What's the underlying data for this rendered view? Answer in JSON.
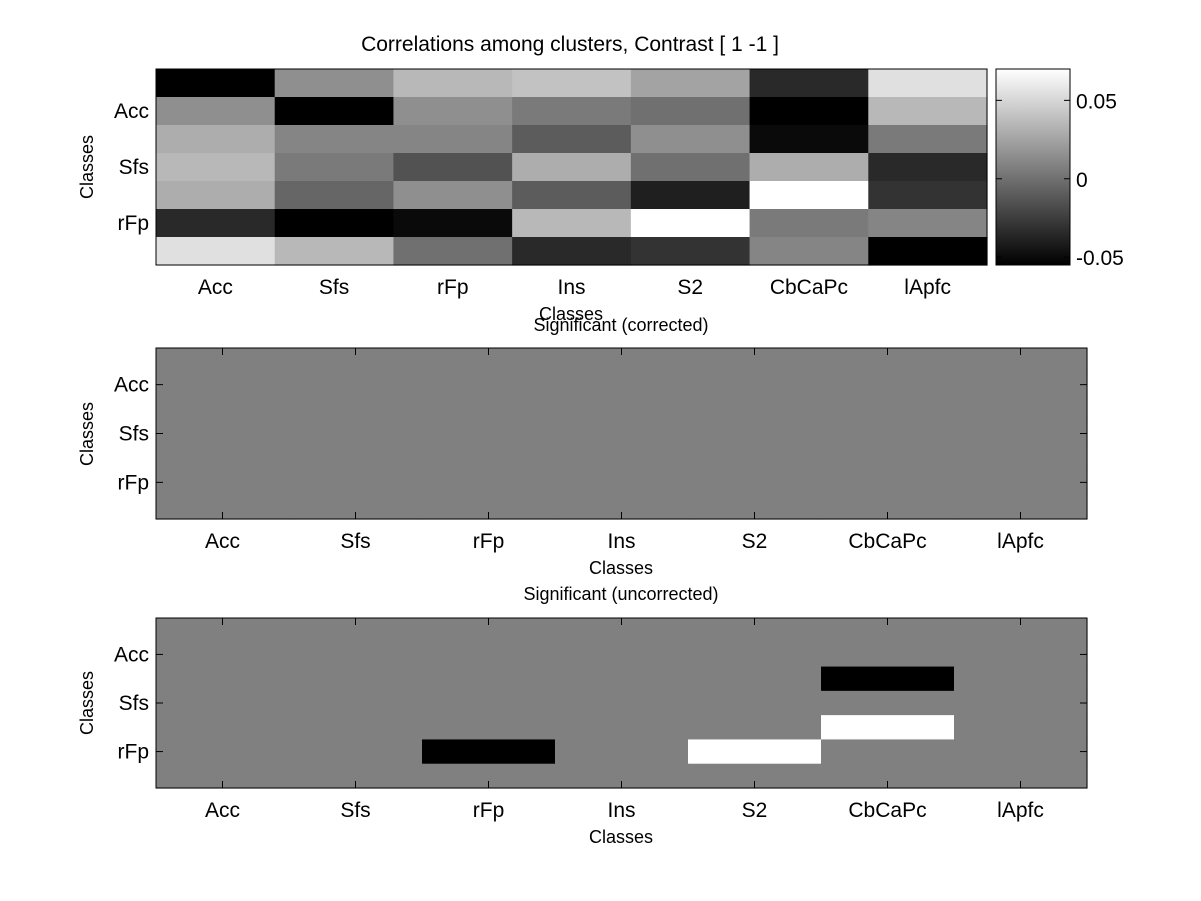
{
  "figure_background": "#ffffff",
  "chart_data": [
    {
      "type": "heatmap",
      "title": "Correlations among clusters, Contrast [ 1 -1 ]",
      "xlabel": "Classes",
      "ylabel": "Classes",
      "x_tick_labels": [
        "Acc",
        "Sfs",
        "rFp",
        "Ins",
        "S2",
        "CbCaPc",
        "lApfc"
      ],
      "y_tick_labels": [
        "Acc",
        "Sfs",
        "rFp"
      ],
      "n_cols": 7,
      "n_rows": 7,
      "colormap": "gray",
      "clim": [
        -0.055,
        0.07
      ],
      "colorbar": {
        "ticks": [
          0.05,
          0,
          -0.05
        ],
        "tick_labels": [
          "0.05",
          "0",
          "-0.05"
        ]
      },
      "values": [
        [
          -0.055,
          0.015,
          0.035,
          0.04,
          0.025,
          -0.035,
          0.055
        ],
        [
          0.015,
          -0.055,
          0.015,
          0.005,
          0.0,
          -0.055,
          0.035
        ],
        [
          0.03,
          0.01,
          0.01,
          -0.01,
          0.015,
          -0.05,
          0.005
        ],
        [
          0.035,
          0.005,
          -0.015,
          0.03,
          0.0,
          0.03,
          -0.035
        ],
        [
          0.03,
          -0.005,
          0.015,
          -0.01,
          -0.04,
          0.07,
          -0.03
        ],
        [
          -0.035,
          -0.055,
          -0.05,
          0.035,
          0.07,
          0.005,
          0.01
        ],
        [
          0.055,
          0.035,
          0.0,
          -0.035,
          -0.03,
          0.01,
          -0.055
        ]
      ]
    },
    {
      "type": "heatmap",
      "title": "Significant (corrected)",
      "xlabel": "Classes",
      "ylabel": "Classes",
      "x_tick_labels": [
        "Acc",
        "Sfs",
        "rFp",
        "Ins",
        "S2",
        "CbCaPc",
        "lApfc"
      ],
      "y_tick_labels": [
        "Acc",
        "Sfs",
        "rFp"
      ],
      "n_cols": 7,
      "n_rows": 7,
      "colormap": "gray",
      "clim": [
        -1,
        1
      ],
      "values": [
        [
          0,
          0,
          0,
          0,
          0,
          0,
          0
        ],
        [
          0,
          0,
          0,
          0,
          0,
          0,
          0
        ],
        [
          0,
          0,
          0,
          0,
          0,
          0,
          0
        ],
        [
          0,
          0,
          0,
          0,
          0,
          0,
          0
        ],
        [
          0,
          0,
          0,
          0,
          0,
          0,
          0
        ],
        [
          0,
          0,
          0,
          0,
          0,
          0,
          0
        ],
        [
          0,
          0,
          0,
          0,
          0,
          0,
          0
        ]
      ]
    },
    {
      "type": "heatmap",
      "title": "Significant (uncorrected)",
      "xlabel": "Classes",
      "ylabel": "Classes",
      "x_tick_labels": [
        "Acc",
        "Sfs",
        "rFp",
        "Ins",
        "S2",
        "CbCaPc",
        "lApfc"
      ],
      "y_tick_labels": [
        "Acc",
        "Sfs",
        "rFp"
      ],
      "n_cols": 7,
      "n_rows": 7,
      "colormap": "gray",
      "clim": [
        -1,
        1
      ],
      "values": [
        [
          0,
          0,
          0,
          0,
          0,
          0,
          0
        ],
        [
          0,
          0,
          0,
          0,
          0,
          0,
          0
        ],
        [
          0,
          0,
          0,
          0,
          0,
          -1,
          0
        ],
        [
          0,
          0,
          0,
          0,
          0,
          0,
          0
        ],
        [
          0,
          0,
          0,
          0,
          0,
          1,
          0
        ],
        [
          0,
          0,
          -1,
          0,
          1,
          0,
          0
        ],
        [
          0,
          0,
          0,
          0,
          0,
          0,
          0
        ]
      ]
    }
  ]
}
